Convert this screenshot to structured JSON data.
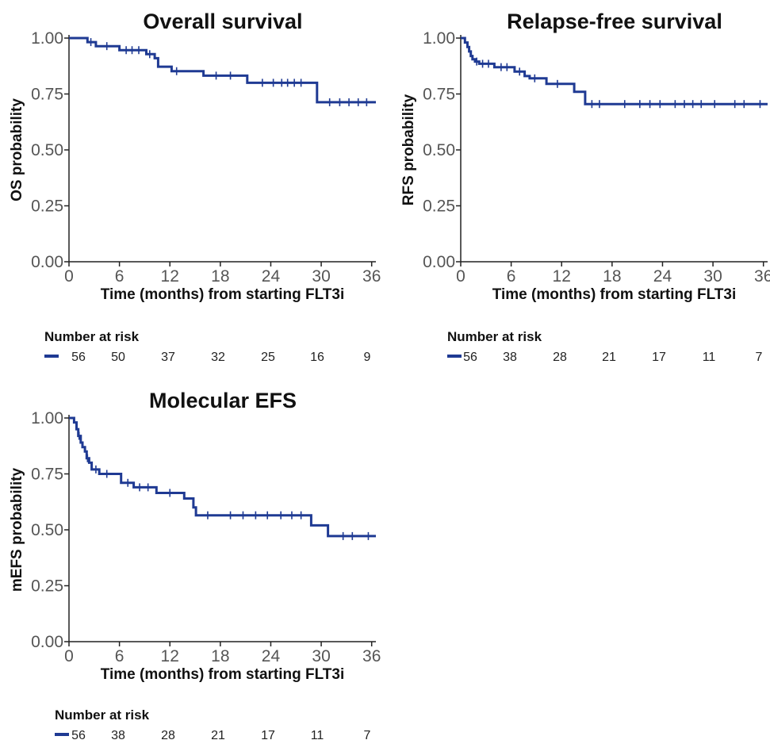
{
  "chart_data": [
    {
      "type": "line",
      "title": "Overall survival",
      "xlabel": "Time (months) from starting FLT3i",
      "ylabel": "OS probability",
      "xlim": [
        0,
        36.5
      ],
      "ylim": [
        0,
        1
      ],
      "xticks": [
        "0",
        "6",
        "12",
        "18",
        "24",
        "30",
        "36"
      ],
      "yticks": [
        "0.00",
        "0.25",
        "0.50",
        "0.75",
        "1.00"
      ],
      "grid": false,
      "color": "#1f3a93",
      "steps": [
        [
          0,
          1.0
        ],
        [
          2.2,
          0.982
        ],
        [
          3.2,
          0.964
        ],
        [
          6,
          0.946
        ],
        [
          9.2,
          0.928
        ],
        [
          10.2,
          0.91
        ],
        [
          10.6,
          0.872
        ],
        [
          12.2,
          0.852
        ],
        [
          16,
          0.832
        ],
        [
          21.2,
          0.8
        ],
        [
          28.5,
          0.8
        ],
        [
          29.5,
          0.713
        ],
        [
          36.5,
          0.713
        ]
      ],
      "censors": [
        [
          2.6,
          0.982
        ],
        [
          4.5,
          0.964
        ],
        [
          6.8,
          0.946
        ],
        [
          7.5,
          0.946
        ],
        [
          8.3,
          0.946
        ],
        [
          9.6,
          0.928
        ],
        [
          12.8,
          0.852
        ],
        [
          17.5,
          0.832
        ],
        [
          19.2,
          0.832
        ],
        [
          23,
          0.8
        ],
        [
          24.3,
          0.8
        ],
        [
          25.3,
          0.8
        ],
        [
          26,
          0.8
        ],
        [
          26.8,
          0.8
        ],
        [
          27.6,
          0.8
        ],
        [
          31,
          0.713
        ],
        [
          32.2,
          0.713
        ],
        [
          33.3,
          0.713
        ],
        [
          34.4,
          0.713
        ],
        [
          35.4,
          0.713
        ]
      ],
      "risk_table": {
        "title": "Number at risk",
        "values": [
          "56",
          "50",
          "37",
          "32",
          "25",
          "16",
          "9"
        ]
      }
    },
    {
      "type": "line",
      "title": "Relapse-free survival",
      "xlabel": "Time (months) from starting FLT3i",
      "ylabel": "RFS probability",
      "xlim": [
        0,
        36.5
      ],
      "ylim": [
        0,
        1
      ],
      "xticks": [
        "0",
        "6",
        "12",
        "18",
        "24",
        "30",
        "36"
      ],
      "yticks": [
        "0.00",
        "0.25",
        "0.50",
        "0.75",
        "1.00"
      ],
      "grid": false,
      "color": "#1f3a93",
      "steps": [
        [
          0,
          1.0
        ],
        [
          0.5,
          0.98
        ],
        [
          0.8,
          0.96
        ],
        [
          1.0,
          0.94
        ],
        [
          1.2,
          0.92
        ],
        [
          1.4,
          0.905
        ],
        [
          1.7,
          0.895
        ],
        [
          2.2,
          0.885
        ],
        [
          4.0,
          0.87
        ],
        [
          6.4,
          0.85
        ],
        [
          7.6,
          0.83
        ],
        [
          8.2,
          0.82
        ],
        [
          10.2,
          0.795
        ],
        [
          13.5,
          0.76
        ],
        [
          14.8,
          0.705
        ],
        [
          36.5,
          0.705
        ]
      ],
      "censors": [
        [
          1.9,
          0.895
        ],
        [
          2.6,
          0.885
        ],
        [
          3.3,
          0.885
        ],
        [
          4.8,
          0.87
        ],
        [
          5.5,
          0.87
        ],
        [
          7.0,
          0.85
        ],
        [
          8.8,
          0.82
        ],
        [
          11.5,
          0.795
        ],
        [
          15.6,
          0.705
        ],
        [
          16.5,
          0.705
        ],
        [
          19.5,
          0.705
        ],
        [
          21.3,
          0.705
        ],
        [
          22.5,
          0.705
        ],
        [
          23.7,
          0.705
        ],
        [
          25.5,
          0.705
        ],
        [
          26.6,
          0.705
        ],
        [
          27.6,
          0.705
        ],
        [
          28.6,
          0.705
        ],
        [
          30.2,
          0.705
        ],
        [
          32.6,
          0.705
        ],
        [
          33.7,
          0.705
        ],
        [
          35.6,
          0.705
        ]
      ],
      "risk_table": {
        "title": "Number at risk",
        "values": [
          "56",
          "38",
          "28",
          "21",
          "17",
          "11",
          "7"
        ]
      }
    },
    {
      "type": "line",
      "title": "Molecular EFS",
      "xlabel": "Time (months) from starting FLT3i",
      "ylabel": "mEFS probability",
      "xlim": [
        0,
        36.5
      ],
      "ylim": [
        0,
        1
      ],
      "xticks": [
        "0",
        "6",
        "12",
        "18",
        "24",
        "30",
        "36"
      ],
      "yticks": [
        "0.00",
        "0.25",
        "0.50",
        "0.75",
        "1.00"
      ],
      "grid": false,
      "color": "#1f3a93",
      "steps": [
        [
          0,
          1.0
        ],
        [
          0.6,
          0.98
        ],
        [
          0.9,
          0.95
        ],
        [
          1.1,
          0.92
        ],
        [
          1.4,
          0.89
        ],
        [
          1.6,
          0.87
        ],
        [
          1.9,
          0.85
        ],
        [
          2.1,
          0.82
        ],
        [
          2.4,
          0.8
        ],
        [
          2.7,
          0.77
        ],
        [
          3.6,
          0.75
        ],
        [
          6.2,
          0.71
        ],
        [
          7.7,
          0.69
        ],
        [
          10.4,
          0.665
        ],
        [
          13.7,
          0.64
        ],
        [
          14.8,
          0.6
        ],
        [
          15.1,
          0.565
        ],
        [
          28.6,
          0.565
        ],
        [
          28.8,
          0.52
        ],
        [
          30.8,
          0.472
        ],
        [
          36.5,
          0.472
        ]
      ],
      "censors": [
        [
          1.2,
          0.92
        ],
        [
          2.2,
          0.82
        ],
        [
          3.2,
          0.77
        ],
        [
          4.5,
          0.75
        ],
        [
          7.0,
          0.71
        ],
        [
          8.4,
          0.69
        ],
        [
          9.4,
          0.69
        ],
        [
          12.0,
          0.665
        ],
        [
          16.5,
          0.565
        ],
        [
          19.2,
          0.565
        ],
        [
          20.7,
          0.565
        ],
        [
          22.2,
          0.565
        ],
        [
          23.6,
          0.565
        ],
        [
          25.2,
          0.565
        ],
        [
          26.5,
          0.565
        ],
        [
          27.6,
          0.565
        ],
        [
          32.6,
          0.472
        ],
        [
          33.7,
          0.472
        ],
        [
          35.6,
          0.472
        ]
      ],
      "risk_table": {
        "title": "Number at risk",
        "values": [
          "56",
          "38",
          "28",
          "21",
          "17",
          "11",
          "7"
        ]
      }
    }
  ]
}
